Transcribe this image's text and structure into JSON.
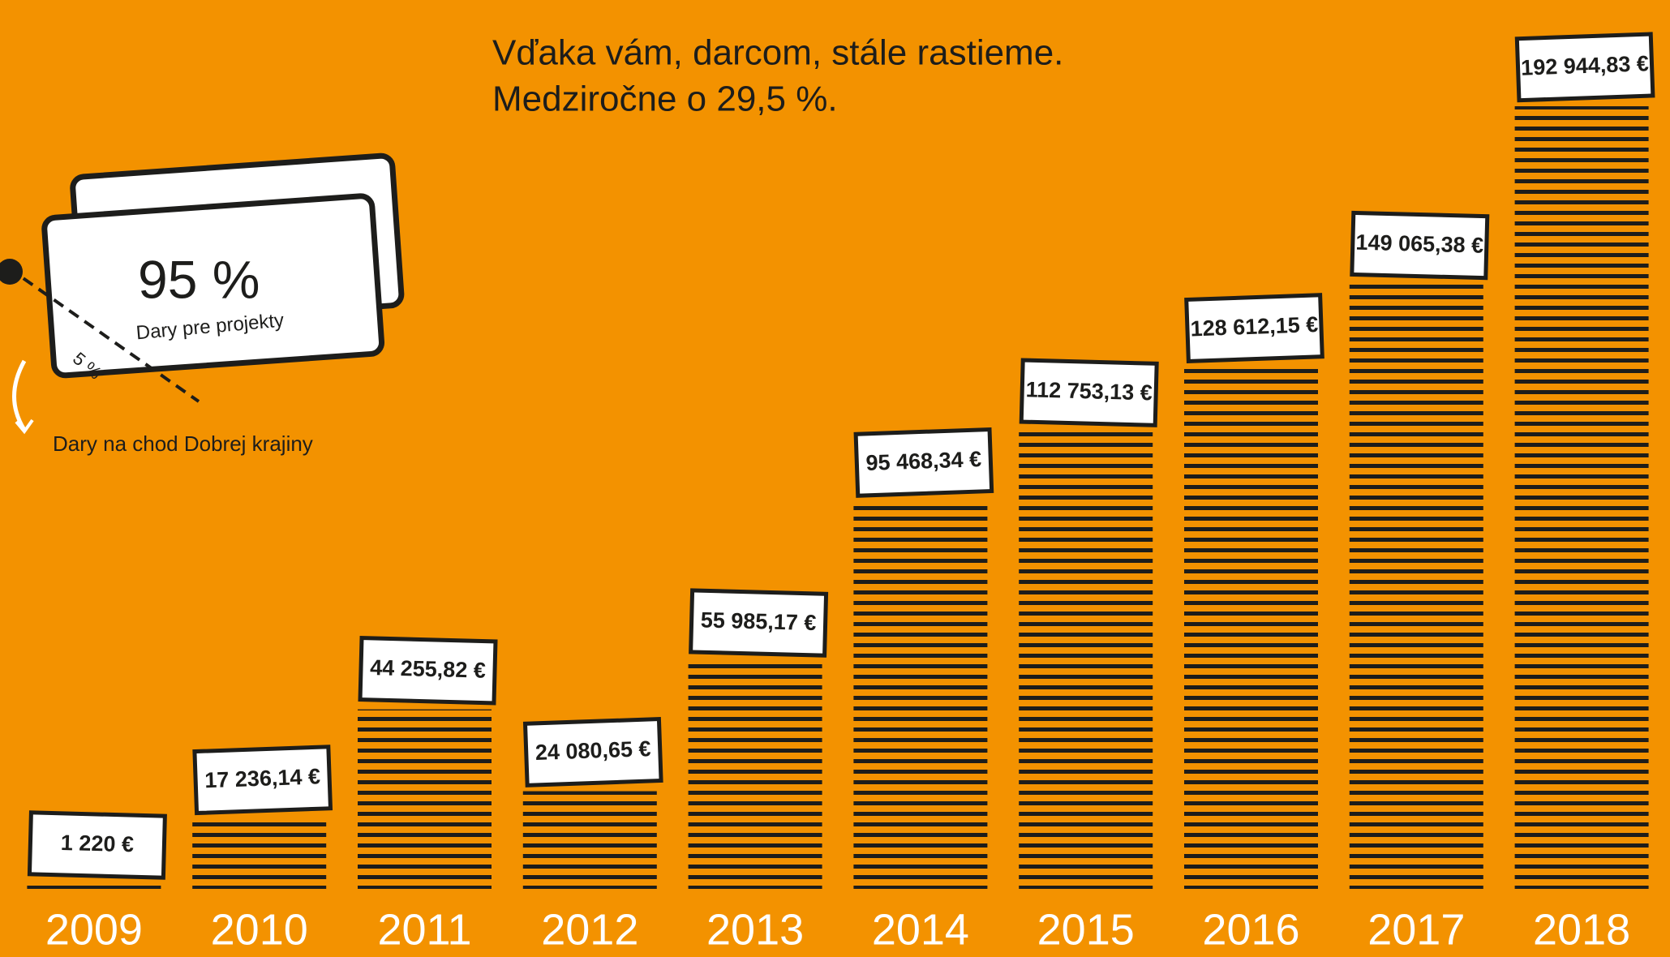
{
  "chart_data": {
    "type": "bar",
    "title": "Vďaka vám, darcom, stále rastieme.",
    "subtitle": "Medziročne o 29,5 %.",
    "annotations": [
      "95 %",
      "Dary pre projekty",
      "5 %",
      "Dary na chod Dobrej krajiny"
    ],
    "categories": [
      "2009",
      "2010",
      "2011",
      "2012",
      "2013",
      "2014",
      "2015",
      "2016",
      "2017",
      "2018"
    ],
    "values": [
      1220,
      17236.14,
      44255.82,
      24080.65,
      55985.17,
      95468.34,
      112753.13,
      128612.15,
      149065.38,
      192944.83
    ],
    "value_labels": [
      "1 220 €",
      "17 236,14 €",
      "44 255,82 €",
      "24 080,65 €",
      "55 985,17 €",
      "95 468,34 €",
      "112 753,13 €",
      "128 612,15 €",
      "149 065,38 €",
      "192 944,83 €"
    ],
    "color": "#1d1d1b"
  }
}
